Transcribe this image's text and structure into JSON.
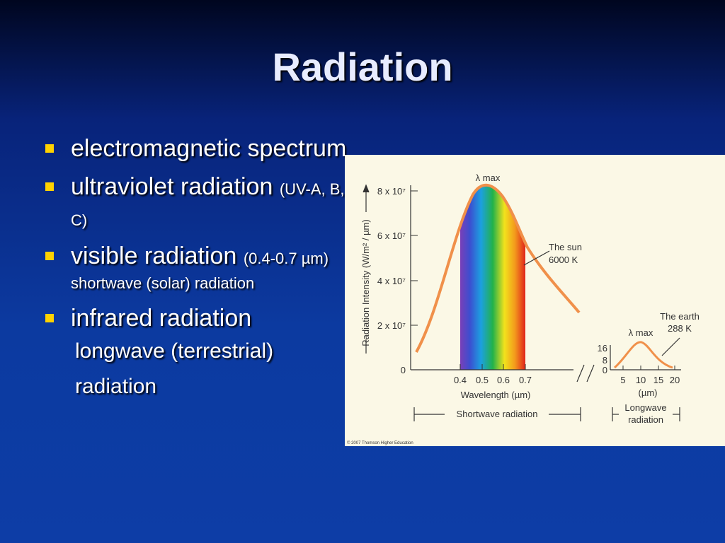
{
  "title": "Radiation",
  "bullets": [
    {
      "text": "electromagnetic spectrum"
    },
    {
      "text": "ultraviolet radiation",
      "note": "(UV-A, B, C)"
    },
    {
      "text": "visible radiation",
      "note": "(0.4-0.7 µm)",
      "sublines": [
        "shortwave (solar) radiation"
      ]
    },
    {
      "text": "infrared radiation",
      "sublines": [
        "longwave (terrestrial)",
        "radiation"
      ]
    }
  ],
  "figure": {
    "y_axis_label": "Radiation Intensity (W/m² / µm)",
    "yticks": [
      "0",
      "2 x 10⁷",
      "4 x 10⁷",
      "6 x 10⁷",
      "8 x 10⁷"
    ],
    "xticks": [
      "0.4",
      "0.5",
      "0.6",
      "0.7"
    ],
    "x_axis_label": "Wavelength (µm)",
    "sun_peak": "λ max",
    "sun_label": [
      "The sun",
      "6000 K"
    ],
    "earth_label": [
      "The earth",
      "288 K"
    ],
    "earth_peak": "λ max",
    "earth_yticks": [
      "0",
      "8",
      "16"
    ],
    "earth_xticks": [
      "5",
      "10",
      "15",
      "20"
    ],
    "earth_x_unit": "(µm)",
    "shortwave": "Shortwave radiation",
    "longwave": [
      "Longwave",
      "radiation"
    ],
    "credit": "© 2007 Thomson Higher Education"
  }
}
